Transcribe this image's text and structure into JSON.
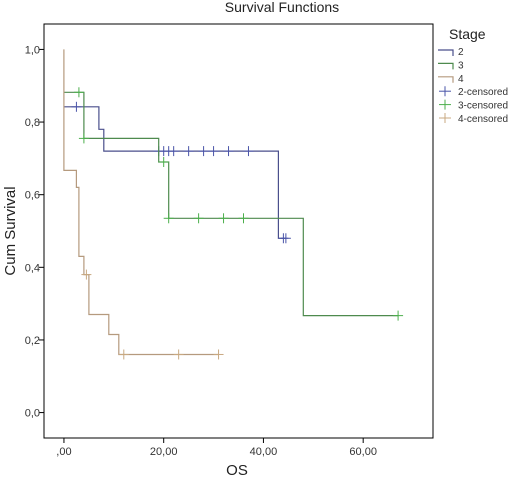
{
  "chart_data": {
    "type": "line",
    "title": "Survival Functions",
    "xlabel": "OS",
    "ylabel": "Cum Survival",
    "xlim": [
      -4,
      74
    ],
    "ylim": [
      -0.07,
      1.07
    ],
    "x_ticks": [
      {
        "value": 0,
        "label": ",00"
      },
      {
        "value": 20,
        "label": "20,00"
      },
      {
        "value": 40,
        "label": "40,00"
      },
      {
        "value": 60,
        "label": "60,00"
      }
    ],
    "y_ticks": [
      {
        "value": 0.0,
        "label": "0,0"
      },
      {
        "value": 0.2,
        "label": "0,2"
      },
      {
        "value": 0.4,
        "label": "0,4"
      },
      {
        "value": 0.6,
        "label": "0,6"
      },
      {
        "value": 0.8,
        "label": "0,8"
      },
      {
        "value": 1.0,
        "label": "1,0"
      }
    ],
    "legend_title": "Stage",
    "legend_position": "right",
    "series": [
      {
        "name": "2",
        "color": "#4a4f8c",
        "censor_color": "#4a54a8",
        "steps": [
          [
            0,
            0.842
          ],
          [
            7,
            0.842
          ],
          [
            7,
            0.78
          ],
          [
            8,
            0.78
          ],
          [
            8,
            0.72
          ],
          [
            43,
            0.72
          ],
          [
            43,
            0.48
          ],
          [
            44.5,
            0.48
          ]
        ],
        "censored": [
          [
            2.5,
            0.842
          ],
          [
            19,
            0.72
          ],
          [
            20,
            0.72
          ],
          [
            21,
            0.72
          ],
          [
            22,
            0.72
          ],
          [
            25,
            0.72
          ],
          [
            28,
            0.72
          ],
          [
            30,
            0.72
          ],
          [
            33,
            0.72
          ],
          [
            37,
            0.72
          ],
          [
            44,
            0.48
          ],
          [
            44.5,
            0.48
          ]
        ]
      },
      {
        "name": "3",
        "color": "#4e8a4e",
        "censor_color": "#4caf4c",
        "steps": [
          [
            0,
            0.882
          ],
          [
            4,
            0.882
          ],
          [
            4,
            0.755
          ],
          [
            19,
            0.755
          ],
          [
            19,
            0.69
          ],
          [
            21,
            0.69
          ],
          [
            21,
            0.535
          ],
          [
            48,
            0.535
          ],
          [
            48,
            0.267
          ],
          [
            67,
            0.267
          ]
        ],
        "censored": [
          [
            3,
            0.882
          ],
          [
            4,
            0.755
          ],
          [
            20,
            0.69
          ],
          [
            21,
            0.535
          ],
          [
            27,
            0.535
          ],
          [
            32,
            0.535
          ],
          [
            36,
            0.535
          ],
          [
            67,
            0.267
          ]
        ]
      },
      {
        "name": "4",
        "color": "#b59a7e",
        "censor_color": "#c8a880",
        "steps": [
          [
            0,
            1.0
          ],
          [
            0,
            0.667
          ],
          [
            2.5,
            0.667
          ],
          [
            2.5,
            0.62
          ],
          [
            3,
            0.62
          ],
          [
            3,
            0.43
          ],
          [
            4,
            0.43
          ],
          [
            4,
            0.38
          ],
          [
            5,
            0.38
          ],
          [
            5,
            0.27
          ],
          [
            9,
            0.27
          ],
          [
            9,
            0.215
          ],
          [
            11,
            0.215
          ],
          [
            11,
            0.16
          ],
          [
            31,
            0.16
          ]
        ],
        "censored": [
          [
            4.5,
            0.38
          ],
          [
            12,
            0.16
          ],
          [
            23,
            0.16
          ],
          [
            31,
            0.16
          ]
        ]
      }
    ],
    "legend": [
      {
        "label": "2",
        "kind": "line",
        "color": "#4a4f8c"
      },
      {
        "label": "3",
        "kind": "line",
        "color": "#4e8a4e"
      },
      {
        "label": "4",
        "kind": "line",
        "color": "#b59a7e"
      },
      {
        "label": "2-censored",
        "kind": "censor",
        "color": "#4a54a8"
      },
      {
        "label": "3-censored",
        "kind": "censor",
        "color": "#4caf4c"
      },
      {
        "label": "4-censored",
        "kind": "censor",
        "color": "#c8a880"
      }
    ]
  }
}
